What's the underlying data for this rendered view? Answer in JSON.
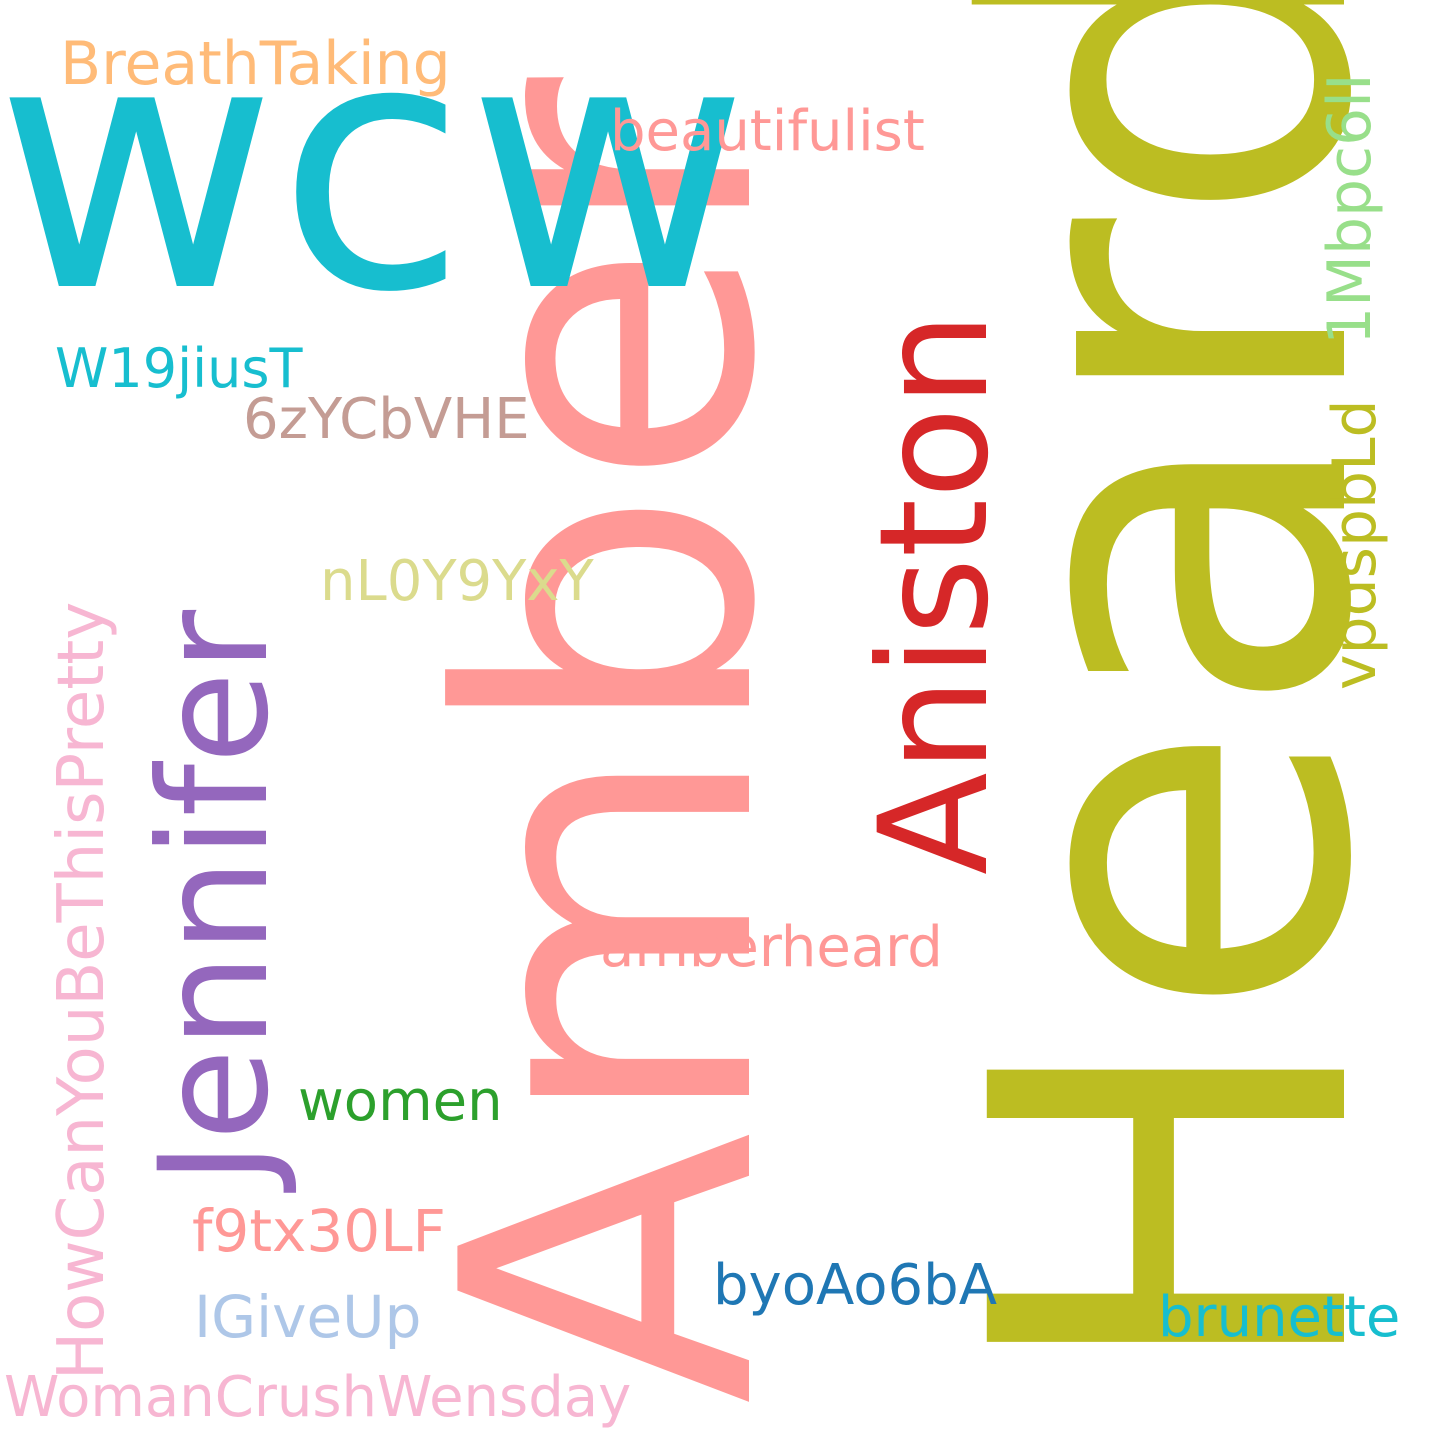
{
  "words": {
    "heard": {
      "text": "Heard",
      "color": "#bcbd22"
    },
    "amber": {
      "text": "Amber",
      "color": "#ff9896"
    },
    "wcw": {
      "text": "wcw",
      "color": "#17becf"
    },
    "jennifer": {
      "text": "Jennifer",
      "color": "#9467bd"
    },
    "aniston": {
      "text": "Aniston",
      "color": "#d62728"
    },
    "breathtaking": {
      "text": "BreathTaking",
      "color": "#ffbb78"
    },
    "beautifulist": {
      "text": "beautifulist",
      "color": "#ff9896"
    },
    "w19jiust": {
      "text": "W19jiusT",
      "color": "#17becf"
    },
    "6zycbvhe": {
      "text": "6zYCbVHE",
      "color": "#c49c94"
    },
    "nl0y9yxy": {
      "text": "nL0Y9YxY",
      "color": "#dbdb8d"
    },
    "amberheard": {
      "text": "amberheard",
      "color": "#ff9896"
    },
    "women": {
      "text": "women",
      "color": "#2ca02c"
    },
    "f9tx30lf": {
      "text": "f9tx30LF",
      "color": "#ff9896"
    },
    "igiveup": {
      "text": "IGiveUp",
      "color": "#aec7e8"
    },
    "byoao6ba": {
      "text": "byoAo6bA",
      "color": "#1f77b4"
    },
    "brunette": {
      "text": "brunette",
      "color": "#17becf"
    },
    "womancrushwensday": {
      "text": "WomanCrushWensday",
      "color": "#f7b6d2"
    },
    "howcanyoubethispretty": {
      "text": "HowCanYouBeThisPretty",
      "color": "#f7b6d2"
    },
    "1mbpc6li": {
      "text": "1Mbpc6lI",
      "color": "#98df8a"
    },
    "vpdspbld": {
      "text": "vpdspbLd",
      "color": "#bcbd22"
    }
  }
}
